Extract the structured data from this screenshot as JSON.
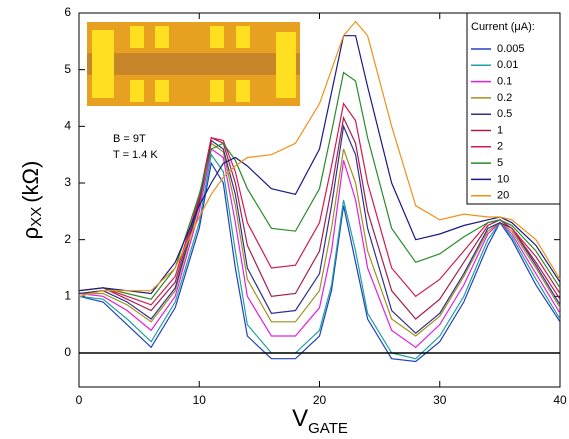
{
  "chart_data": {
    "type": "line",
    "ylabel": {
      "main": "ρ",
      "sub": "XX",
      "unit": "(kΩ)"
    },
    "xlabel": {
      "main": "V",
      "sub": "GATE"
    },
    "annotations": [
      "B = 9T",
      "T = 1.4 K"
    ],
    "legend_title": "Current (μA):",
    "legend": "upper right",
    "xlim": [
      0,
      40
    ],
    "xticks": [
      0,
      10,
      20,
      30,
      40
    ],
    "ylim": [
      -0.6,
      6
    ],
    "yticks": [
      0,
      1,
      2,
      3,
      4,
      5,
      6
    ],
    "zero_line": true,
    "x": [
      0,
      2,
      4,
      6,
      8,
      10,
      11,
      12,
      13,
      14,
      16,
      18,
      20,
      21,
      22,
      23,
      24,
      26,
      28,
      30,
      32,
      34,
      35,
      36,
      38,
      40
    ],
    "series": [
      {
        "name": "0.005",
        "color": "#2040c0",
        "values": [
          1.0,
          0.9,
          0.5,
          0.1,
          0.8,
          2.2,
          3.35,
          3.0,
          1.5,
          0.3,
          -0.1,
          -0.1,
          0.3,
          1.1,
          2.6,
          1.6,
          0.6,
          -0.1,
          -0.15,
          0.2,
          0.9,
          1.9,
          2.3,
          2.0,
          1.2,
          0.55
        ]
      },
      {
        "name": "0.01",
        "color": "#20a0a0",
        "values": [
          1.0,
          0.95,
          0.6,
          0.2,
          0.9,
          2.3,
          3.5,
          3.2,
          1.8,
          0.5,
          0.0,
          0.0,
          0.4,
          1.2,
          2.7,
          1.8,
          0.7,
          0.0,
          -0.1,
          0.3,
          1.0,
          2.0,
          2.3,
          2.05,
          1.3,
          0.6
        ]
      },
      {
        "name": "0.1",
        "color": "#e020e0",
        "values": [
          1.05,
          1.0,
          0.75,
          0.4,
          1.0,
          2.5,
          3.6,
          3.45,
          2.3,
          1.0,
          0.3,
          0.3,
          0.8,
          1.8,
          3.4,
          2.7,
          1.5,
          0.4,
          0.1,
          0.5,
          1.2,
          2.1,
          2.3,
          2.1,
          1.4,
          0.7
        ]
      },
      {
        "name": "0.2",
        "color": "#a09020",
        "values": [
          1.05,
          1.05,
          0.85,
          0.55,
          1.1,
          2.6,
          3.7,
          3.55,
          2.6,
          1.3,
          0.55,
          0.55,
          1.1,
          2.2,
          3.6,
          3.0,
          1.8,
          0.6,
          0.3,
          0.65,
          1.35,
          2.15,
          2.3,
          2.15,
          1.5,
          0.8
        ]
      },
      {
        "name": "0.5",
        "color": "#303090",
        "values": [
          1.05,
          1.1,
          0.9,
          0.6,
          1.15,
          2.65,
          3.75,
          3.6,
          2.8,
          1.5,
          0.7,
          0.75,
          1.4,
          2.6,
          4.0,
          3.5,
          2.2,
          0.75,
          0.35,
          0.7,
          1.4,
          2.2,
          2.3,
          2.2,
          1.55,
          0.85
        ]
      },
      {
        "name": "1",
        "color": "#a02050",
        "values": [
          1.1,
          1.15,
          0.95,
          0.75,
          1.25,
          2.7,
          3.8,
          3.7,
          3.0,
          1.9,
          1.0,
          1.05,
          1.8,
          2.9,
          4.15,
          3.7,
          2.5,
          1.1,
          0.6,
          0.95,
          1.6,
          2.25,
          2.35,
          2.2,
          1.6,
          0.95
        ]
      },
      {
        "name": "2",
        "color": "#d01a50",
        "values": [
          1.1,
          1.15,
          1.0,
          0.85,
          1.35,
          2.75,
          3.8,
          3.75,
          3.2,
          2.3,
          1.5,
          1.55,
          2.3,
          3.3,
          4.4,
          4.1,
          3.0,
          1.5,
          1.0,
          1.3,
          1.8,
          2.3,
          2.35,
          2.2,
          1.7,
          1.05
        ]
      },
      {
        "name": "5",
        "color": "#2a8a2a",
        "values": [
          1.1,
          1.15,
          1.05,
          0.95,
          1.5,
          2.8,
          3.6,
          3.7,
          3.4,
          2.9,
          2.2,
          2.15,
          2.9,
          3.9,
          4.95,
          4.8,
          3.8,
          2.2,
          1.6,
          1.75,
          2.05,
          2.3,
          2.35,
          2.25,
          1.8,
          1.15
        ]
      },
      {
        "name": "10",
        "color": "#1a1a80",
        "values": [
          1.1,
          1.15,
          1.1,
          1.05,
          1.6,
          2.6,
          3.0,
          3.35,
          3.45,
          3.3,
          2.9,
          2.8,
          3.6,
          4.6,
          5.6,
          5.6,
          4.7,
          3.0,
          2.0,
          2.1,
          2.25,
          2.35,
          2.4,
          2.3,
          1.9,
          1.25
        ]
      },
      {
        "name": "20",
        "color": "#f0901a",
        "values": [
          1.0,
          1.1,
          1.1,
          1.1,
          1.5,
          2.4,
          2.8,
          3.1,
          3.3,
          3.45,
          3.5,
          3.7,
          4.4,
          5.0,
          5.6,
          5.85,
          5.6,
          4.0,
          2.6,
          2.35,
          2.45,
          2.4,
          2.4,
          2.35,
          2.0,
          1.3
        ]
      }
    ]
  }
}
